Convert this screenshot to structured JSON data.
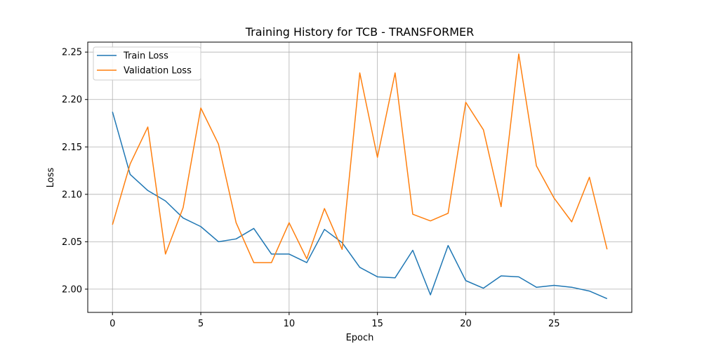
{
  "chart_data": {
    "type": "line",
    "title": "Training History for TCB - TRANSFORMER",
    "xlabel": "Epoch",
    "ylabel": "Loss",
    "xlim": [
      -1.4,
      29.4
    ],
    "ylim": [
      1.9755,
      2.2605
    ],
    "xticks": [
      0,
      5,
      10,
      15,
      20,
      25
    ],
    "yticks": [
      2.0,
      2.05,
      2.1,
      2.15,
      2.2,
      2.25
    ],
    "grid": true,
    "legend_position": "top-left",
    "x": [
      0,
      1,
      2,
      3,
      4,
      5,
      6,
      7,
      8,
      9,
      10,
      11,
      12,
      13,
      14,
      15,
      16,
      17,
      18,
      19,
      20,
      21,
      22,
      23,
      24,
      25,
      26,
      27,
      28
    ],
    "series": [
      {
        "name": "Train Loss",
        "color": "#1f77b4",
        "values": [
          2.187,
          2.121,
          2.104,
          2.093,
          2.075,
          2.066,
          2.05,
          2.053,
          2.064,
          2.037,
          2.037,
          2.028,
          2.063,
          2.049,
          2.023,
          2.013,
          2.012,
          2.041,
          1.994,
          2.046,
          2.009,
          2.001,
          2.014,
          2.013,
          2.002,
          2.004,
          2.002,
          1.998,
          1.99
        ]
      },
      {
        "name": "Validation Loss",
        "color": "#ff7f0e",
        "values": [
          2.068,
          2.132,
          2.171,
          2.037,
          2.086,
          2.191,
          2.153,
          2.07,
          2.028,
          2.028,
          2.07,
          2.032,
          2.085,
          2.042,
          2.228,
          2.139,
          2.228,
          2.079,
          2.072,
          2.08,
          2.197,
          2.168,
          2.087,
          2.248,
          2.13,
          2.096,
          2.071,
          2.118,
          2.042
        ]
      }
    ]
  }
}
